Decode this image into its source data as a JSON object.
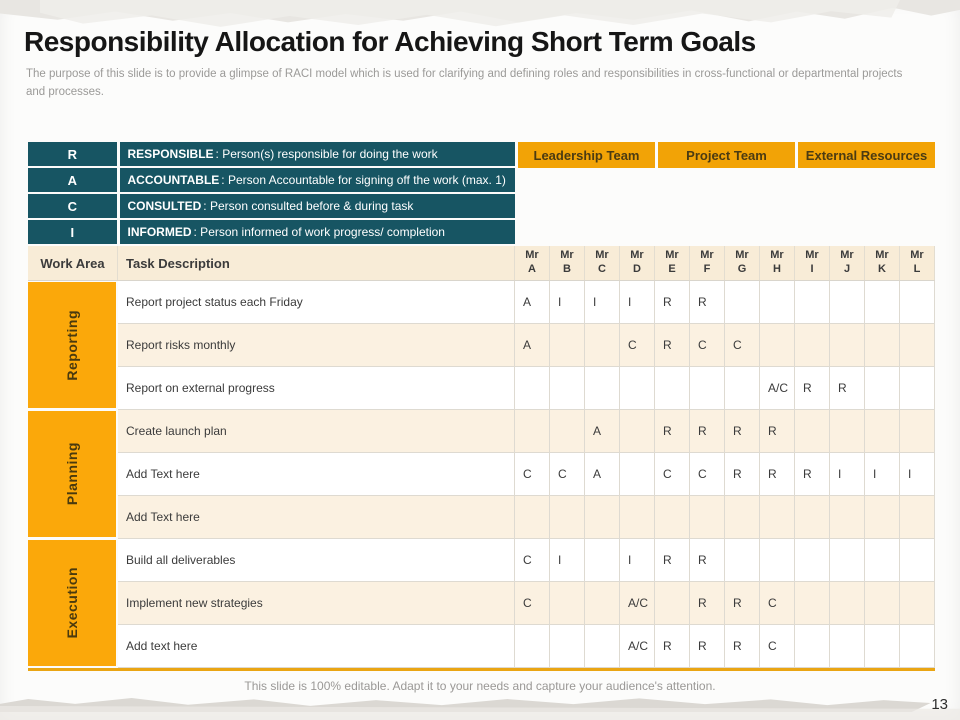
{
  "slide": {
    "title": "Responsibility Allocation for Achieving Short Term Goals",
    "subtitle": "The purpose of this slide is to provide a glimpse of RACI model which is used for clarifying and defining roles and responsibilities in cross-functional or departmental projects and processes.",
    "footer": "This slide is 100% editable. Adapt it to your needs and capture your audience's attention.",
    "page_number": "13"
  },
  "colors": {
    "legend_teal": "#175563",
    "team_header_orange": "#f2a306",
    "section_band_orange": "#fba80a",
    "row_cream": "#fbf1e1",
    "header_row_cream": "#f8ecd7",
    "grid_line": "#dedad1",
    "text_dark": "#3b3b3b"
  },
  "legend": {
    "rows": [
      {
        "key": "R",
        "term": "RESPONSIBLE",
        "desc": " : Person(s) responsible for doing the work"
      },
      {
        "key": "A",
        "term": "ACCOUNTABLE",
        "desc": " : Person Accountable for signing off the work (max. 1)"
      },
      {
        "key": "C",
        "term": "CONSULTED",
        "desc": " : Person consulted before & during task"
      },
      {
        "key": "I",
        "term": "INFORMED",
        "desc": " : Person informed of work progress/ completion"
      }
    ]
  },
  "teams": [
    {
      "label": "Leadership Team"
    },
    {
      "label": "Project Team"
    },
    {
      "label": "External Resources"
    }
  ],
  "matrix": {
    "work_area_header": "Work Area",
    "task_header": "Task Description",
    "people": [
      {
        "l1": "Mr",
        "l2": "A"
      },
      {
        "l1": "Mr",
        "l2": "B"
      },
      {
        "l1": "Mr",
        "l2": "C"
      },
      {
        "l1": "Mr",
        "l2": "D"
      },
      {
        "l1": "Mr",
        "l2": "E"
      },
      {
        "l1": "Mr",
        "l2": "F"
      },
      {
        "l1": "Mr",
        "l2": "G"
      },
      {
        "l1": "Mr",
        "l2": "H"
      },
      {
        "l1": "Mr",
        "l2": "I"
      },
      {
        "l1": "Mr",
        "l2": "J"
      },
      {
        "l1": "Mr",
        "l2": "K"
      },
      {
        "l1": "Mr",
        "l2": "L"
      }
    ],
    "sections": [
      {
        "name": "Reporting",
        "rows": [
          {
            "task": "Report project status each Friday",
            "cells": [
              "A",
              "I",
              "I",
              "I",
              "R",
              "R",
              "",
              "",
              "",
              "",
              "",
              ""
            ]
          },
          {
            "task": "Report risks monthly",
            "cells": [
              "A",
              "",
              "",
              "C",
              "R",
              "C",
              "C",
              "",
              "",
              "",
              "",
              ""
            ]
          },
          {
            "task": "Report on external progress",
            "cells": [
              "",
              "",
              "",
              "",
              "",
              "",
              "",
              "A/C",
              "R",
              "R",
              "",
              ""
            ]
          }
        ]
      },
      {
        "name": "Planning",
        "rows": [
          {
            "task": "Create launch plan",
            "cells": [
              "",
              "",
              "A",
              "",
              "R",
              "R",
              "R",
              "R",
              "",
              "",
              "",
              ""
            ]
          },
          {
            "task": "Add Text here",
            "cells": [
              "C",
              "C",
              "A",
              "",
              "C",
              "C",
              "R",
              "R",
              "R",
              "I",
              "I",
              "I"
            ]
          },
          {
            "task": "Add Text here",
            "cells": [
              "",
              "",
              "",
              "",
              "",
              "",
              "",
              "",
              "",
              "",
              "",
              ""
            ]
          }
        ]
      },
      {
        "name": "Execution",
        "rows": [
          {
            "task": "Build all deliverables",
            "cells": [
              "C",
              "I",
              "",
              "I",
              "R",
              "R",
              "",
              "",
              "",
              "",
              "",
              ""
            ]
          },
          {
            "task": "Implement new strategies",
            "cells": [
              "C",
              "",
              "",
              "A/C",
              "",
              "R",
              "R",
              "C",
              "",
              "",
              "",
              ""
            ]
          },
          {
            "task": "Add text here",
            "cells": [
              "",
              "",
              "",
              "A/C",
              "R",
              "R",
              "R",
              "C",
              "",
              "",
              "",
              ""
            ]
          }
        ]
      }
    ]
  }
}
